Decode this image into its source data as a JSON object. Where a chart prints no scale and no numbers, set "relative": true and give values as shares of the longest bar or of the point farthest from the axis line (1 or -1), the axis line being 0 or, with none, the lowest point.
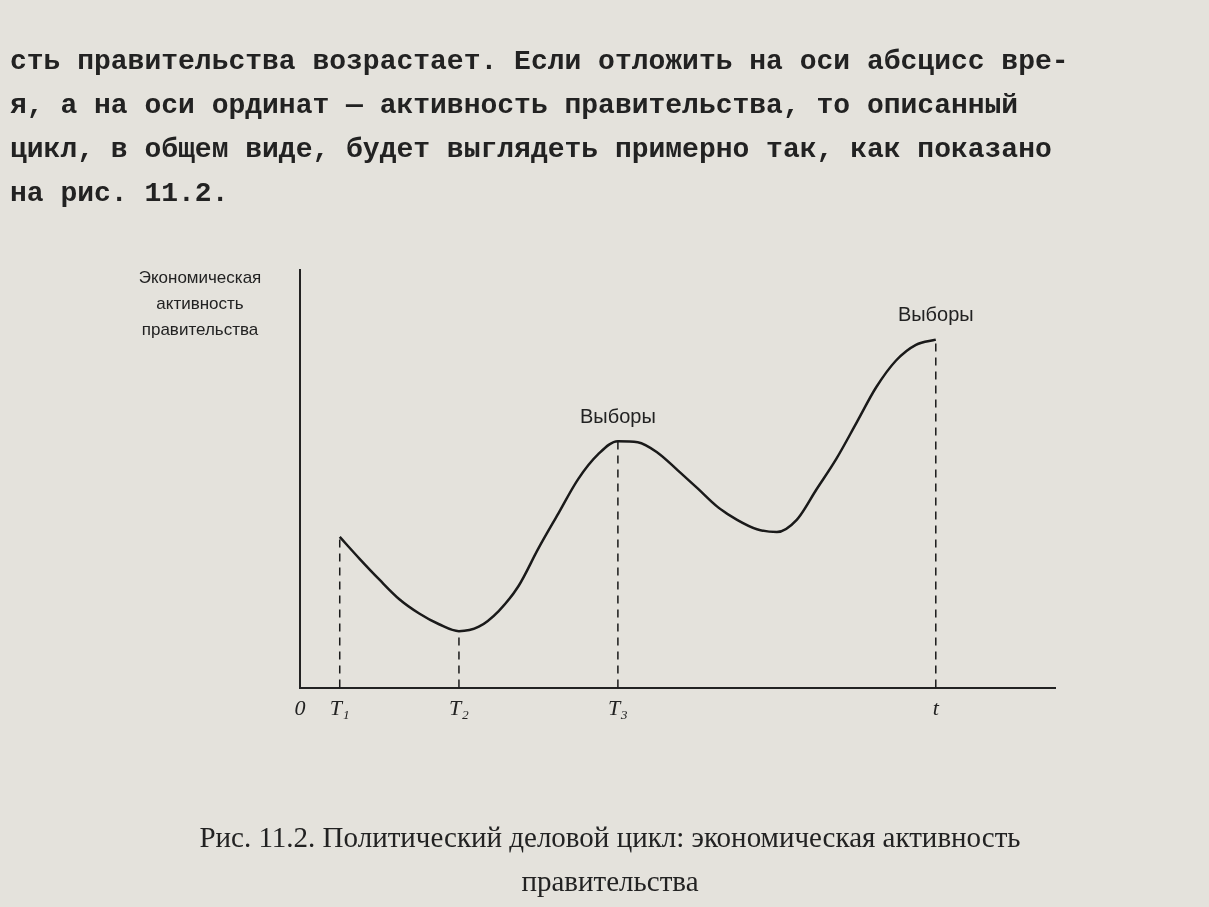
{
  "chart_data": {
    "type": "line",
    "relative": true,
    "ylabel": "Экономическая активность правительства",
    "categories": [
      "0",
      null,
      "T₁",
      null,
      null,
      null,
      null,
      null,
      "T₂",
      null,
      null,
      null,
      null,
      null,
      null,
      null,
      "T₃",
      null,
      null,
      null,
      null,
      null,
      null,
      null,
      null,
      null,
      null,
      null,
      null,
      null,
      null,
      null,
      "t",
      null,
      null,
      null,
      null,
      null,
      null
    ],
    "series": [
      {
        "color": "#1a1a1a",
        "values": [
          null,
          null,
          0.433,
          0.37,
          0.31,
          0.254,
          0.213,
          0.182,
          0.162,
          0.175,
          0.22,
          0.292,
          0.4,
          0.5,
          0.599,
          0.67,
          0.708,
          0.705,
          0.675,
          0.625,
          0.573,
          0.52,
          0.482,
          0.455,
          0.447,
          0.482,
          0.57,
          0.658,
          0.76,
          0.863,
          0.94,
          0.985,
          1.0,
          null,
          null,
          null,
          null,
          null,
          null
        ]
      }
    ],
    "ref_lines": [
      {
        "axis": "x",
        "value": "T₁",
        "line_style": "dashed",
        "color": "#1a1a1a"
      },
      {
        "axis": "x",
        "value": "T₂",
        "line_style": "dashed",
        "color": "#1a1a1a"
      },
      {
        "axis": "x",
        "value": "T₃",
        "line_style": "dashed",
        "color": "#1a1a1a"
      },
      {
        "axis": "x",
        "value": "t",
        "line_style": "dashed",
        "color": "#1a1a1a"
      }
    ],
    "annotations": [
      {
        "text": "Выборы",
        "x": "T₃",
        "y": 0.708
      },
      {
        "text": "Выборы",
        "x": "t",
        "y": 1.0
      },
      "сть правительства возрастает. Если отложить на оси абсцисс вре-",
      "я, а на оси ординат — активность правительства, то описанный",
      "цикл, в общем виде, будет выглядеть примерно так, как показано",
      "на рис. 11.2.",
      "Рис. 11.2. Политический деловой цикл: экономическая активность правительства"
    ],
    "legend": false,
    "grid": false,
    "marker": "none",
    "line_style": "solid"
  }
}
